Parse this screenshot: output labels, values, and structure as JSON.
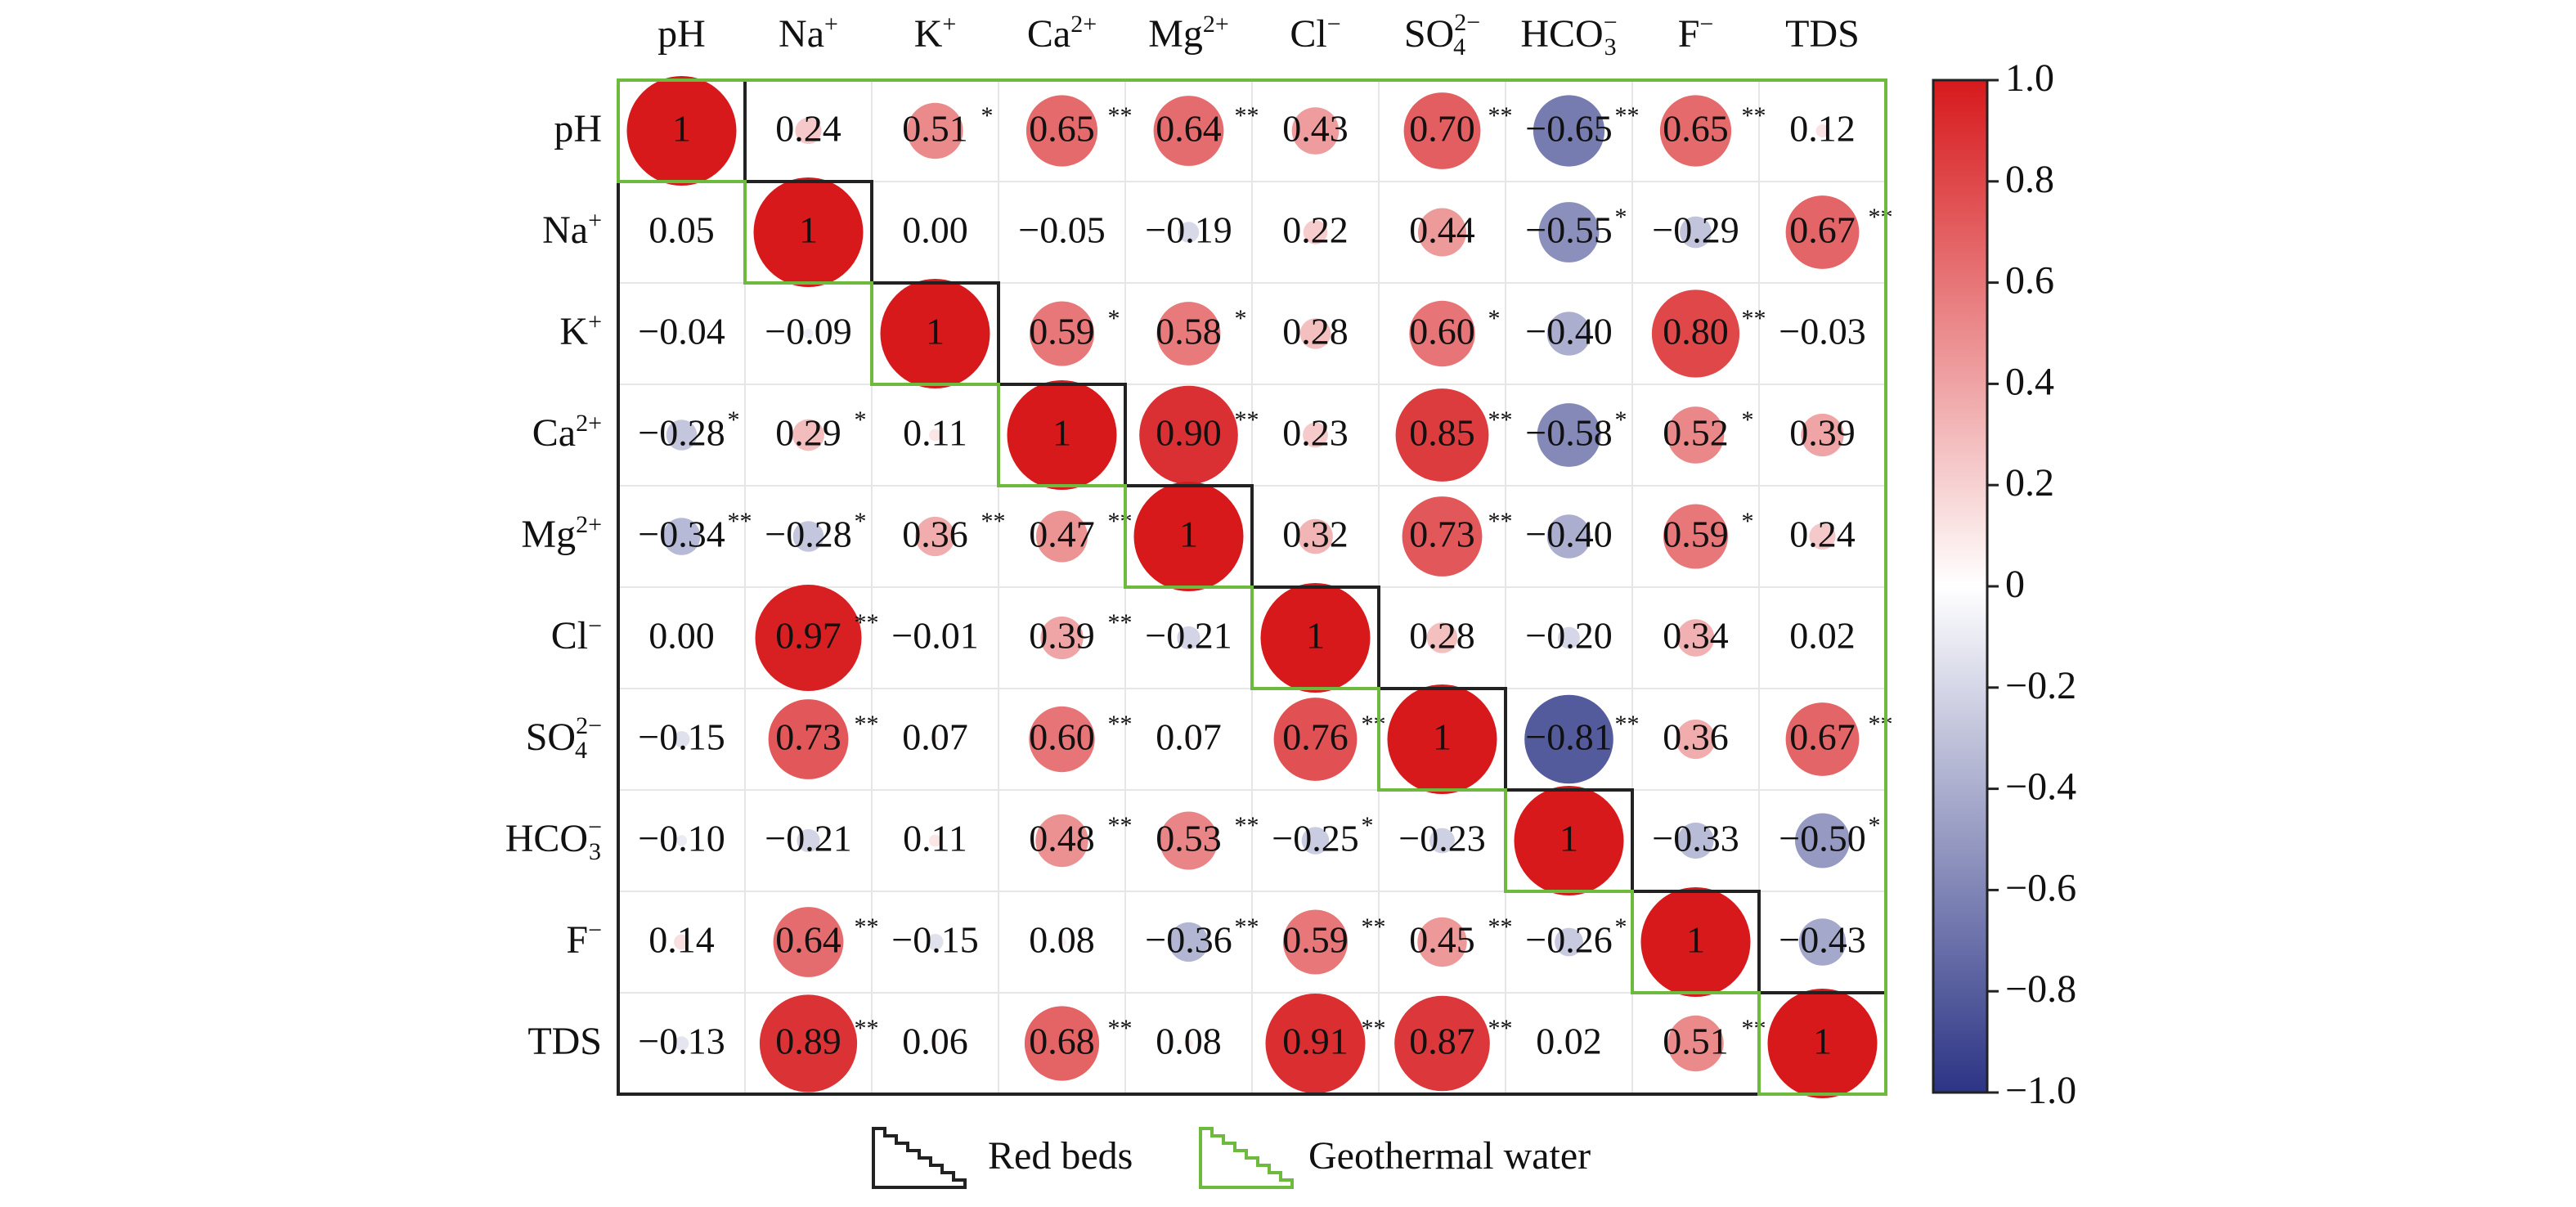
{
  "chart_data": {
    "type": "heatmap",
    "subtype": "correlation-matrix",
    "variables": [
      {
        "base": "pH",
        "sup": "",
        "sub": ""
      },
      {
        "base": "Na",
        "sup": "+",
        "sub": ""
      },
      {
        "base": "K",
        "sup": "+",
        "sub": ""
      },
      {
        "base": "Ca",
        "sup": "2+",
        "sub": ""
      },
      {
        "base": "Mg",
        "sup": "2+",
        "sub": ""
      },
      {
        "base": "Cl",
        "sup": "−",
        "sub": ""
      },
      {
        "base": "SO",
        "sup": "2−",
        "sub": "4"
      },
      {
        "base": "HCO",
        "sup": "−",
        "sub": "3"
      },
      {
        "base": "F",
        "sup": "−",
        "sub": ""
      },
      {
        "base": "TDS",
        "sup": "",
        "sub": ""
      }
    ],
    "matrix": [
      [
        "1",
        "0.24",
        "0.51*",
        "0.65**",
        "0.64**",
        "0.43",
        "0.70**",
        "−0.65**",
        "0.65**",
        "0.12"
      ],
      [
        "0.05",
        "1",
        "0.00",
        "−0.05",
        "−0.19",
        "0.22",
        "0.44",
        "−0.55*",
        "−0.29",
        "0.67**"
      ],
      [
        "−0.04",
        "−0.09",
        "1",
        "0.59*",
        "0.58*",
        "0.28",
        "0.60*",
        "−0.40",
        "0.80**",
        "−0.03"
      ],
      [
        "−0.28*",
        "0.29*",
        "0.11",
        "1",
        "0.90**",
        "0.23",
        "0.85**",
        "−0.58*",
        "0.52*",
        "0.39"
      ],
      [
        "−0.34**",
        "−0.28*",
        "0.36**",
        "0.47**",
        "1",
        "0.32",
        "0.73**",
        "−0.40",
        "0.59*",
        "0.24"
      ],
      [
        "0.00",
        "0.97**",
        "−0.01",
        "0.39**",
        "−0.21",
        "1",
        "0.28",
        "−0.20",
        "0.34",
        "0.02"
      ],
      [
        "−0.15",
        "0.73**",
        "0.07",
        "0.60**",
        "0.07",
        "0.76**",
        "1",
        "−0.81**",
        "0.36",
        "0.67**"
      ],
      [
        "−0.10",
        "−0.21",
        "0.11",
        "0.48**",
        "0.53**",
        "−0.25*",
        "−0.23",
        "1",
        "−0.33",
        "−0.50*"
      ],
      [
        "0.14",
        "0.64**",
        "−0.15",
        "0.08",
        "−0.36**",
        "0.59**",
        "0.45**",
        "−0.26*",
        "1",
        "−0.43"
      ],
      [
        "−0.13",
        "0.89**",
        "0.06",
        "0.68**",
        "0.08",
        "0.91**",
        "0.87**",
        "0.02",
        "0.51**",
        "1"
      ]
    ],
    "colorbar": {
      "range": [
        -1.0,
        1.0
      ],
      "ticks": [
        "1.0",
        "0.8",
        "0.6",
        "0.4",
        "0.2",
        "0",
        "−0.2",
        "−0.4",
        "−0.6",
        "−0.8",
        "−1.0"
      ],
      "colors": {
        "positive": "#d7191c",
        "neutral": "#ffffff",
        "negative": "#2c3485"
      }
    },
    "legend": [
      {
        "label": "Red beds",
        "color": "#222222",
        "region": "lower-triangle"
      },
      {
        "label": "Geothermal water",
        "color": "#6dba3f",
        "region": "upper-triangle"
      }
    ]
  }
}
